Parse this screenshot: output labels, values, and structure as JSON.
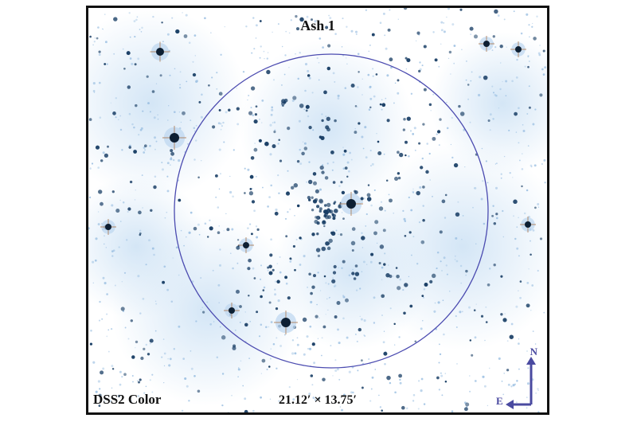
{
  "image": {
    "title": "Ash 1",
    "survey_label": "DSS2 Color",
    "field_of_view": "21.12′ × 13.75′",
    "compass": {
      "north": "N",
      "east": "E"
    },
    "colors": {
      "star": "#1a3f66",
      "nebulosity": "#cfe3f5",
      "circle": "#4b4bb0",
      "compass": "#4a4aa0",
      "frame": "#111111"
    }
  }
}
